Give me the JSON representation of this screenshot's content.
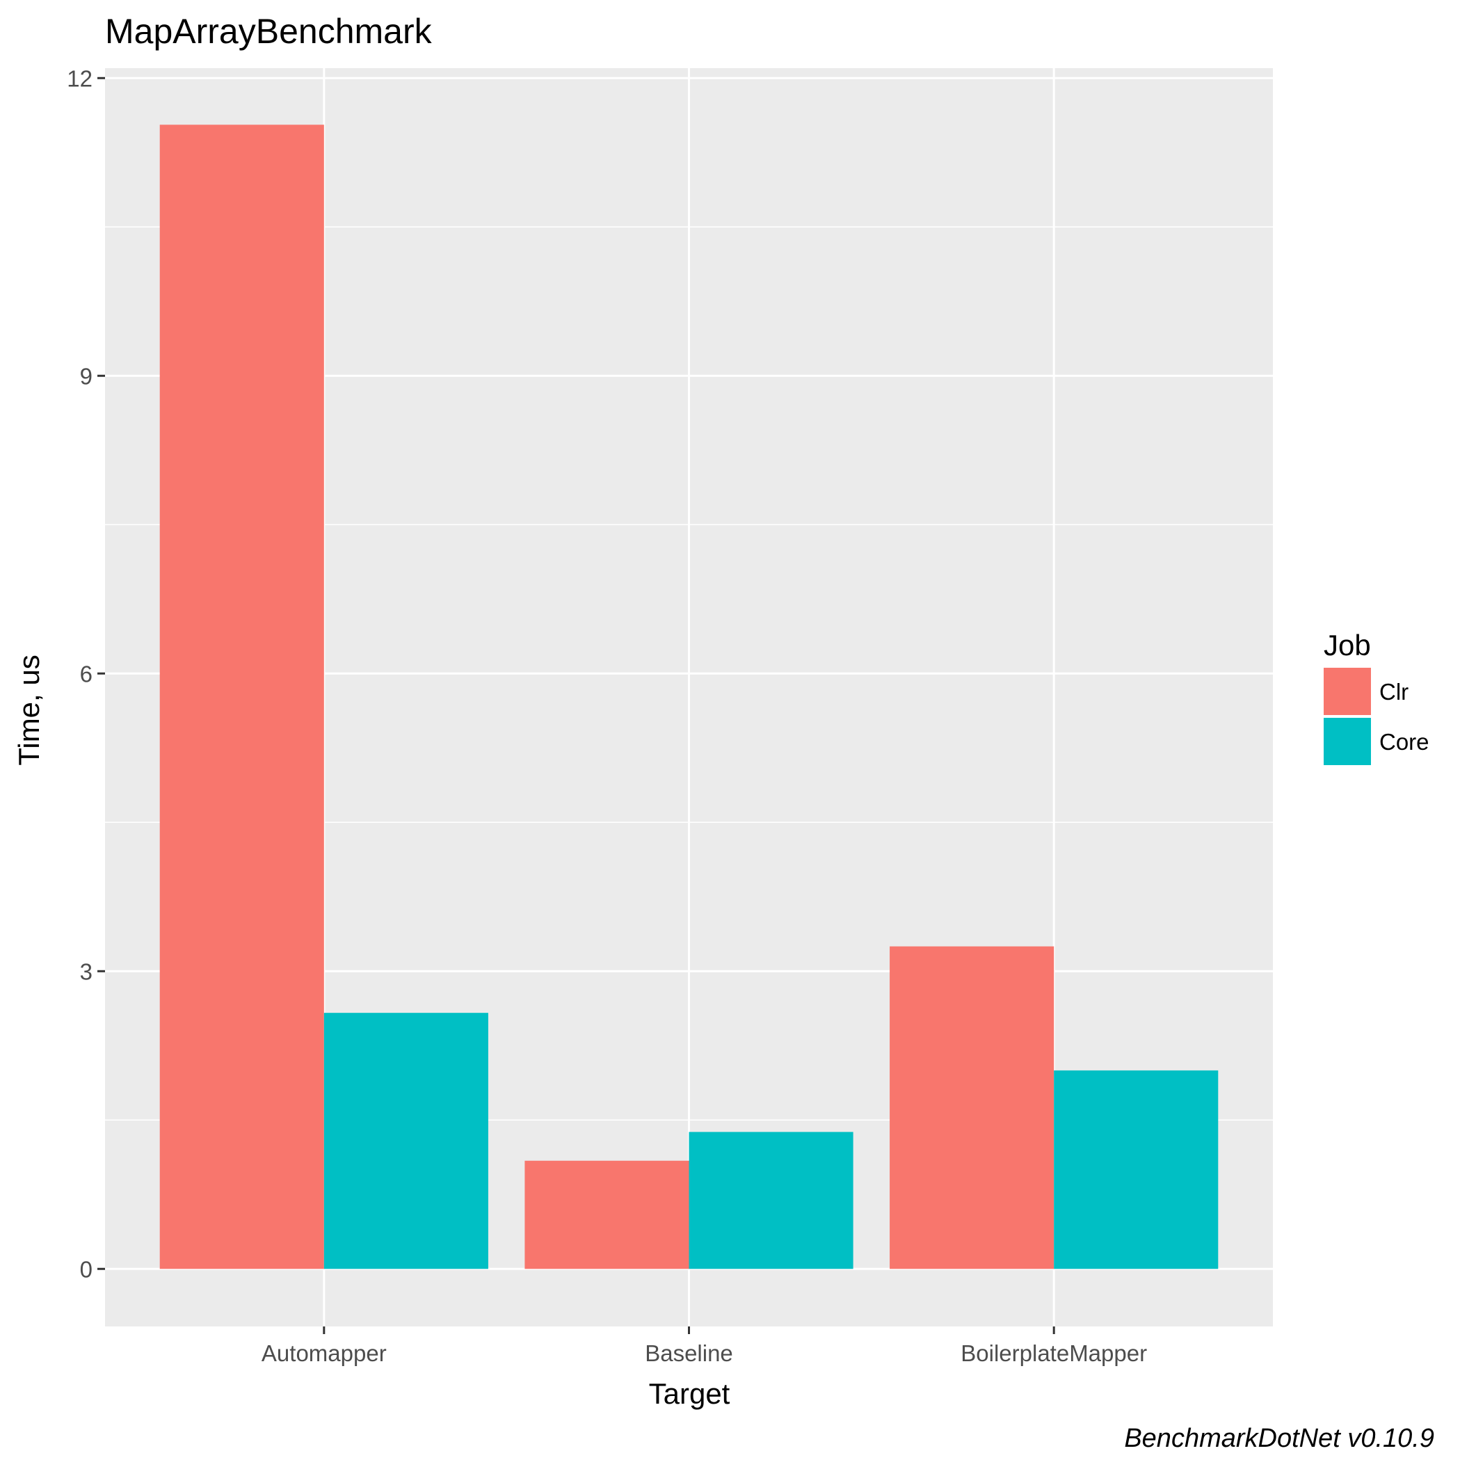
{
  "chart_data": {
    "type": "bar",
    "title": "MapArrayBenchmark",
    "xlabel": "Target",
    "ylabel": "Time, us",
    "categories": [
      "Automapper",
      "Baseline",
      "BoilerplateMapper"
    ],
    "series": [
      {
        "name": "Clr",
        "color": "#F8766D",
        "values": [
          11.53,
          1.09,
          3.25
        ]
      },
      {
        "name": "Core",
        "color": "#00BFC4",
        "values": [
          2.58,
          1.38,
          2.0
        ]
      }
    ],
    "ylim": [
      -0.58,
      12.1
    ],
    "yticks": [
      0,
      3,
      6,
      9,
      12
    ],
    "ytick_labels": [
      "0",
      "3",
      "6",
      "9",
      "12"
    ],
    "grid": true,
    "panel_background": "#EBEBEB",
    "legend": {
      "title": "Job",
      "position": "right"
    },
    "caption": "BenchmarkDotNet v0.10.9"
  }
}
